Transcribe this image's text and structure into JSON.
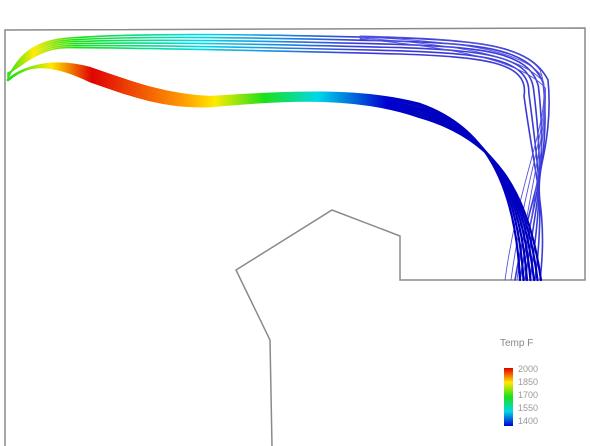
{
  "legend": {
    "title": "Temp F",
    "ticks": [
      "2000",
      "1850",
      "1700",
      "1550",
      "1400"
    ],
    "colors": [
      "#e00000",
      "#ffea00",
      "#1ae01a",
      "#00d8e8",
      "#0000d0"
    ]
  },
  "colors": {
    "outline": "#8a8a8a",
    "background": "#ffffff"
  }
}
